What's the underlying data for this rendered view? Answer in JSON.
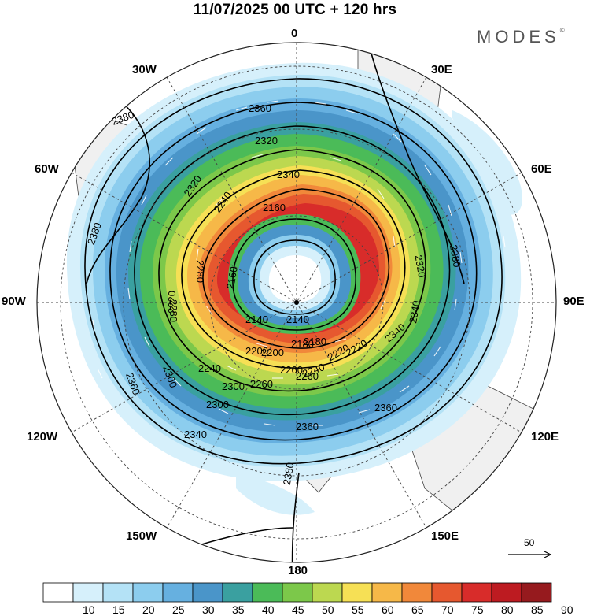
{
  "title": "11/07/2025  00 UTC  + 120 hrs",
  "logo": "MODES",
  "logo_mark": "©",
  "longitude_labels": {
    "top": "0",
    "upper_right": "30E",
    "upper_left": "30W",
    "right_upper": "60E",
    "left_upper": "60W",
    "right": "90E",
    "left": "90W",
    "right_lower": "120E",
    "left_lower": "120W",
    "lower_right": "150E",
    "lower_left": "150W",
    "bottom": "180"
  },
  "contour_labels": [
    "2380",
    "2360",
    "2340",
    "2320",
    "2300",
    "2280",
    "2260",
    "2240",
    "2220",
    "2200",
    "2180",
    "2160",
    "2140",
    "2340",
    "2320",
    "2240",
    "2280",
    "2360",
    "2380",
    "2360",
    "2300",
    "2260",
    "2220",
    "2320",
    "2340",
    "2360",
    "2380",
    "2380",
    "2340",
    "2300",
    "2260",
    "2240",
    "2220",
    "2200",
    "2180",
    "2160",
    "2140"
  ],
  "vector_reference": "50",
  "colorbar": {
    "labels": [
      "10",
      "15",
      "20",
      "25",
      "30",
      "35",
      "40",
      "45",
      "50",
      "55",
      "60",
      "65",
      "70",
      "75",
      "80",
      "85",
      "90"
    ],
    "colors": [
      "#ffffff",
      "#d6f0fb",
      "#b4e2f6",
      "#8ccdee",
      "#66b0e0",
      "#4a95c9",
      "#3aa0a0",
      "#4bbb58",
      "#7cc84a",
      "#bcd850",
      "#f6e055",
      "#f6b848",
      "#f1883a",
      "#e6582f",
      "#d82c2a",
      "#bd1b21",
      "#961a1e"
    ]
  }
}
